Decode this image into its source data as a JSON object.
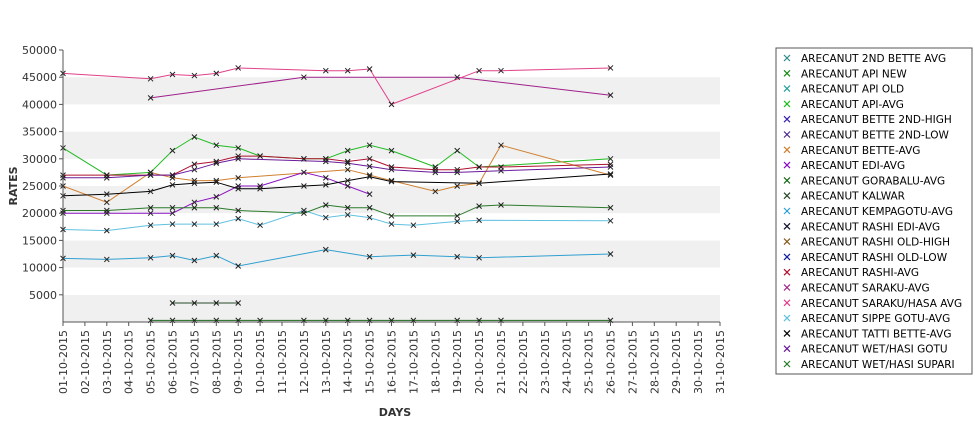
{
  "chart_data": {
    "type": "line",
    "title": "",
    "xlabel": "DAYS",
    "ylabel": "RATES",
    "ylim": [
      0,
      50000
    ],
    "y_ticks": [
      5000,
      10000,
      15000,
      20000,
      25000,
      30000,
      35000,
      40000,
      45000,
      50000
    ],
    "categories": [
      "01-10-2015",
      "02-10-2015",
      "03-10-2015",
      "04-10-2015",
      "05-10-2015",
      "06-10-2015",
      "07-10-2015",
      "08-10-2015",
      "09-10-2015",
      "10-10-2015",
      "11-10-2015",
      "12-10-2015",
      "13-10-2015",
      "14-10-2015",
      "15-10-2015",
      "16-10-2015",
      "17-10-2015",
      "18-10-2015",
      "19-10-2015",
      "20-10-2015",
      "21-10-2015",
      "22-10-2015",
      "23-10-2015",
      "24-10-2015",
      "25-10-2015",
      "26-10-2015",
      "27-10-2015",
      "28-10-2015",
      "29-10-2015",
      "30-10-2015",
      "31-10-2015"
    ],
    "grid": "horizontal alternating bands",
    "legend_position": "right",
    "series": [
      {
        "name": "ARECANUT 2ND BETTE AVG",
        "color": "#2e8b8b",
        "values": [
          null,
          null,
          null,
          null,
          null,
          null,
          null,
          null,
          null,
          null,
          null,
          null,
          null,
          null,
          null,
          null,
          null,
          null,
          null,
          null,
          null,
          null,
          null,
          null,
          null,
          null,
          null,
          null,
          null,
          null,
          null
        ]
      },
      {
        "name": "ARECANUT API NEW",
        "color": "#1a8a1a",
        "values": [
          null,
          null,
          null,
          null,
          null,
          null,
          null,
          null,
          null,
          null,
          null,
          null,
          null,
          null,
          null,
          null,
          null,
          null,
          null,
          null,
          null,
          null,
          null,
          null,
          null,
          null,
          null,
          null,
          null,
          null,
          null
        ]
      },
      {
        "name": "ARECANUT API OLD",
        "color": "#2aa0a0",
        "values": [
          null,
          null,
          null,
          null,
          null,
          null,
          null,
          null,
          null,
          null,
          null,
          null,
          null,
          null,
          null,
          null,
          null,
          null,
          null,
          null,
          null,
          null,
          null,
          null,
          null,
          null,
          null,
          null,
          null,
          null,
          null
        ]
      },
      {
        "name": "ARECANUT API-AVG",
        "color": "#22bb22",
        "values": [
          32000,
          null,
          27000,
          null,
          27500,
          31500,
          34000,
          32500,
          32000,
          30500,
          null,
          30000,
          30000,
          31500,
          32500,
          31500,
          null,
          28500,
          31500,
          28500,
          null,
          null,
          null,
          null,
          null,
          30000,
          null,
          null,
          null,
          null,
          null
        ]
      },
      {
        "name": "ARECANUT BETTE 2ND-HIGH",
        "color": "#3a20b0",
        "values": [
          null,
          null,
          null,
          null,
          null,
          null,
          null,
          null,
          null,
          null,
          null,
          null,
          null,
          null,
          null,
          null,
          null,
          null,
          null,
          null,
          null,
          null,
          null,
          null,
          null,
          null,
          null,
          null,
          null,
          null,
          null
        ]
      },
      {
        "name": "ARECANUT BETTE 2ND-LOW",
        "color": "#4a2a8a",
        "values": [
          null,
          null,
          null,
          null,
          null,
          null,
          null,
          null,
          null,
          null,
          null,
          null,
          null,
          null,
          null,
          null,
          null,
          null,
          null,
          null,
          null,
          null,
          null,
          null,
          null,
          null,
          null,
          null,
          null,
          null,
          null
        ]
      },
      {
        "name": "ARECANUT BETTE-AVG",
        "color": "#d08030",
        "values": [
          25000,
          null,
          22000,
          null,
          27500,
          26500,
          26000,
          26000,
          26500,
          null,
          null,
          null,
          null,
          28000,
          27000,
          26000,
          null,
          24000,
          25000,
          25500,
          32500,
          null,
          null,
          null,
          null,
          27000,
          null,
          null,
          null,
          null,
          null
        ]
      },
      {
        "name": "ARECANUT EDI-AVG",
        "color": "#8a10c0",
        "values": [
          20000,
          null,
          20000,
          null,
          20000,
          20000,
          22000,
          23000,
          25000,
          25000,
          null,
          27500,
          26500,
          25000,
          23500,
          null,
          null,
          null,
          null,
          null,
          null,
          null,
          null,
          null,
          null,
          null,
          null,
          null,
          null,
          null,
          null
        ]
      },
      {
        "name": "ARECANUT GORABALU-AVG",
        "color": "#1a6a1a",
        "values": [
          null,
          null,
          null,
          null,
          300,
          300,
          300,
          300,
          300,
          300,
          null,
          300,
          300,
          300,
          300,
          300,
          300,
          null,
          300,
          300,
          300,
          null,
          null,
          null,
          null,
          300,
          null,
          null,
          null,
          null,
          null
        ]
      },
      {
        "name": "ARECANUT KALWAR",
        "color": "#2a4a2a",
        "values": [
          null,
          null,
          null,
          null,
          null,
          3500,
          3500,
          3500,
          3500,
          null,
          null,
          null,
          null,
          null,
          null,
          null,
          null,
          null,
          null,
          null,
          null,
          null,
          null,
          null,
          null,
          null,
          null,
          null,
          null,
          null,
          null
        ]
      },
      {
        "name": "ARECANUT KEMPAGOTU-AVG",
        "color": "#30a0d0",
        "values": [
          11700,
          null,
          11500,
          null,
          11800,
          12200,
          11300,
          12200,
          10300,
          null,
          null,
          null,
          13300,
          null,
          12000,
          null,
          12300,
          null,
          12000,
          11800,
          null,
          null,
          null,
          null,
          null,
          12500,
          null,
          null,
          null,
          null,
          null
        ]
      },
      {
        "name": "ARECANUT RASHI EDI-AVG",
        "color": "#101030",
        "values": [
          null,
          null,
          null,
          null,
          null,
          null,
          null,
          null,
          null,
          null,
          null,
          null,
          null,
          null,
          null,
          null,
          null,
          null,
          null,
          null,
          null,
          null,
          null,
          null,
          null,
          null,
          null,
          null,
          null,
          null,
          null
        ]
      },
      {
        "name": "ARECANUT RASHI OLD-HIGH",
        "color": "#8a5a20",
        "values": [
          null,
          null,
          null,
          null,
          null,
          null,
          null,
          null,
          null,
          null,
          null,
          null,
          null,
          null,
          null,
          null,
          null,
          null,
          null,
          null,
          null,
          null,
          null,
          null,
          null,
          null,
          null,
          null,
          null,
          null,
          null
        ]
      },
      {
        "name": "ARECANUT RASHI OLD-LOW",
        "color": "#1020a0",
        "values": [
          null,
          null,
          null,
          null,
          null,
          null,
          null,
          null,
          null,
          null,
          null,
          null,
          null,
          null,
          null,
          null,
          null,
          null,
          null,
          null,
          null,
          null,
          null,
          null,
          null,
          null,
          null,
          null,
          null,
          null,
          null
        ]
      },
      {
        "name": "ARECANUT RASHI-AVG",
        "color": "#b01030",
        "values": [
          27000,
          null,
          27000,
          null,
          27000,
          27000,
          29000,
          29500,
          30500,
          30500,
          null,
          30000,
          30000,
          29500,
          30000,
          28500,
          null,
          28000,
          28000,
          28500,
          28500,
          null,
          null,
          null,
          null,
          29000,
          null,
          null,
          null,
          null,
          null
        ]
      },
      {
        "name": "ARECANUT SARAKU-AVG",
        "color": "#a0208a",
        "values": [
          null,
          null,
          null,
          null,
          41200,
          null,
          null,
          null,
          null,
          null,
          null,
          45000,
          null,
          null,
          null,
          null,
          null,
          null,
          45000,
          null,
          null,
          null,
          null,
          null,
          null,
          41700,
          null,
          null,
          null,
          null,
          null
        ]
      },
      {
        "name": "ARECANUT SARAKU/HASA AVG",
        "color": "#e0408a",
        "values": [
          45700,
          null,
          null,
          null,
          44700,
          45500,
          45300,
          45700,
          46700,
          null,
          null,
          null,
          46200,
          46200,
          46500,
          40000,
          null,
          null,
          null,
          46200,
          46200,
          null,
          null,
          null,
          null,
          46700,
          null,
          null,
          null,
          null,
          null
        ]
      },
      {
        "name": "ARECANUT SIPPE GOTU-AVG",
        "color": "#60c0e0",
        "values": [
          17000,
          null,
          16800,
          null,
          17800,
          18000,
          18000,
          18000,
          19000,
          17800,
          null,
          20500,
          19200,
          19700,
          19200,
          18000,
          17800,
          null,
          18500,
          18700,
          null,
          null,
          null,
          null,
          null,
          18600,
          null,
          null,
          null,
          null,
          null
        ]
      },
      {
        "name": "ARECANUT TATTI BETTE-AVG",
        "color": "#000000",
        "values": [
          23200,
          null,
          23500,
          null,
          24000,
          25200,
          25500,
          25700,
          24500,
          24500,
          null,
          25000,
          25200,
          26000,
          26700,
          25800,
          null,
          null,
          null,
          25500,
          null,
          null,
          null,
          null,
          null,
          27200,
          null,
          null,
          null,
          null,
          null
        ]
      },
      {
        "name": "ARECANUT WET/HASI GOTU",
        "color": "#6a1a9a",
        "values": [
          26500,
          null,
          26500,
          null,
          27000,
          27000,
          28000,
          29200,
          30000,
          null,
          null,
          null,
          29500,
          29200,
          28600,
          28000,
          null,
          27500,
          27500,
          null,
          27800,
          null,
          null,
          null,
          null,
          28500,
          null,
          null,
          null,
          null,
          null
        ]
      },
      {
        "name": "ARECANUT WET/HASI SUPARI",
        "color": "#2a7a2a",
        "values": [
          20500,
          null,
          20500,
          null,
          21000,
          21000,
          21000,
          21000,
          20500,
          null,
          null,
          20000,
          21500,
          21000,
          21000,
          19500,
          null,
          null,
          19500,
          21300,
          21500,
          null,
          null,
          null,
          null,
          21000,
          null,
          null,
          null,
          null,
          null
        ]
      }
    ]
  }
}
